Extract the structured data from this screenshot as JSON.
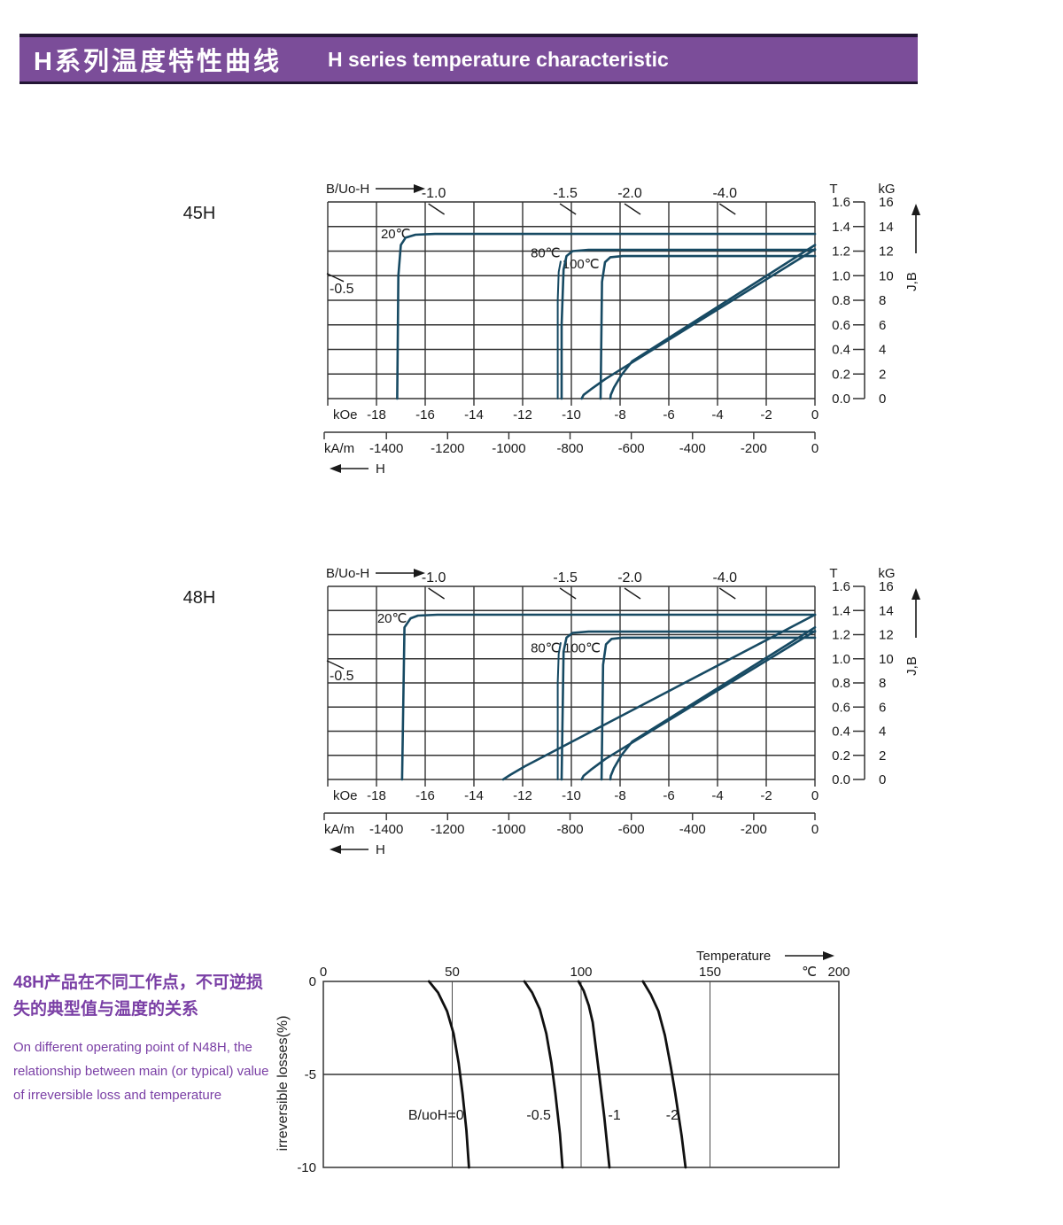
{
  "banner": {
    "title_zh": "H系列温度特性曲线",
    "title_en": "H  series temperature characteristic",
    "bg_color": "#7b4d99",
    "border_color": "#241735",
    "text_color": "#ffffff"
  },
  "note": {
    "zh": "48H产品在不同工作点，不可逆损失的典型值与温度的关系",
    "en": "On different operating point of N48H, the relationship between main (or typical) value of irreversible loss and temperature",
    "color": "#7a3fa5"
  },
  "colors": {
    "demag_curve": "#174a63",
    "loss_curve": "#101010",
    "grid": "#333333",
    "text": "#1a1a1a",
    "accent": "#7b4d99"
  },
  "chart_data": [
    {
      "id": "demag-45H",
      "type": "line",
      "grade": "45H",
      "title": "45H demagnetization curves",
      "axis_top_label": "B/Uo-H",
      "h_axis": {
        "unit_koe": "kOe",
        "ticks_koe": [
          -18,
          -16,
          -14,
          -12,
          -10,
          -8,
          -6,
          -4,
          -2,
          0
        ],
        "unit_kam": "kA/m",
        "ticks_kam": [
          -1400,
          -1200,
          -1000,
          -800,
          -600,
          -400,
          -200,
          0
        ],
        "arrow_label": "H",
        "range_koe": [
          -20,
          0
        ]
      },
      "b_axis": {
        "unit_t": "T",
        "ticks_t": [
          "1.6",
          "1.4",
          "1.2",
          "1.0",
          "0.8",
          "0.6",
          "0.4",
          "0.2",
          "0.0"
        ],
        "unit_kg": "kG",
        "ticks_kg": [
          16,
          14,
          12,
          10,
          8,
          6,
          4,
          2,
          0
        ],
        "arrow_label": "J,B",
        "range_kg": [
          0,
          16
        ]
      },
      "load_lines": {
        "top": [
          {
            "label": "-1.0",
            "h": -15.65
          },
          {
            "label": "-1.5",
            "h": -10.25
          },
          {
            "label": "-2.0",
            "h": -7.6
          },
          {
            "label": "-4.0",
            "h": -3.7
          }
        ],
        "left": {
          "label": "-0.5",
          "b_kg": 8.95
        }
      },
      "temp_labels": [
        {
          "label": "20℃",
          "h": -16.6,
          "b_kg": 13.05
        },
        {
          "label": "80℃",
          "h": -10.45,
          "b_kg": 11.5
        },
        {
          "label": "100℃",
          "h": -8.85,
          "b_kg": 10.6
        }
      ],
      "series": [
        {
          "name": "J 20℃",
          "points": [
            [
              0,
              13.4
            ],
            [
              -15.6,
              13.4
            ],
            [
              -16.4,
              13.33
            ],
            [
              -16.8,
              13.1
            ],
            [
              -17.0,
              12.5
            ],
            [
              -17.1,
              10
            ],
            [
              -17.15,
              0
            ]
          ]
        },
        {
          "name": "J 80℃",
          "points": [
            [
              0,
              12.1
            ],
            [
              -9.3,
              12.1
            ],
            [
              -9.95,
              12.0
            ],
            [
              -10.2,
              11.6
            ],
            [
              -10.32,
              10.5
            ],
            [
              -10.4,
              6
            ],
            [
              -10.4,
              0
            ]
          ]
        },
        {
          "name": "J 80℃ companion",
          "width": 2,
          "points": [
            [
              -10.56,
              0
            ],
            [
              -10.56,
              8
            ],
            [
              -10.52,
              10.3
            ],
            [
              -10.44,
              11.15
            ]
          ]
        },
        {
          "name": "J 100℃",
          "points": [
            [
              0,
              11.6
            ],
            [
              -7.9,
              11.6
            ],
            [
              -8.4,
              11.5
            ],
            [
              -8.62,
              11.1
            ],
            [
              -8.74,
              9.5
            ],
            [
              -8.8,
              0
            ]
          ]
        },
        {
          "name": "B 100℃",
          "points": [
            [
              0,
              12.5
            ],
            [
              -7.5,
              3.05
            ],
            [
              -7.95,
              1.9
            ],
            [
              -8.25,
              0.9
            ],
            [
              -8.38,
              0.3
            ],
            [
              -8.4,
              0
            ]
          ]
        },
        {
          "name": "B 80℃",
          "points": [
            [
              0,
              12.15
            ],
            [
              -8.6,
              1.6
            ],
            [
              -9.2,
              0.75
            ],
            [
              -9.5,
              0.3
            ],
            [
              -9.58,
              0
            ]
          ]
        }
      ]
    },
    {
      "id": "demag-48H",
      "type": "line",
      "grade": "48H",
      "title": "48H demagnetization curves",
      "axis_top_label": "B/Uo-H",
      "h_axis": {
        "unit_koe": "kOe",
        "ticks_koe": [
          -18,
          -16,
          -14,
          -12,
          -10,
          -8,
          -6,
          -4,
          -2,
          0
        ],
        "unit_kam": "kA/m",
        "ticks_kam": [
          -1400,
          -1200,
          -1000,
          -800,
          -600,
          -400,
          -200,
          0
        ],
        "arrow_label": "H",
        "range_koe": [
          -20,
          0
        ]
      },
      "b_axis": {
        "unit_t": "T",
        "ticks_t": [
          "1.6",
          "1.4",
          "1.2",
          "1.0",
          "0.8",
          "0.6",
          "0.4",
          "0.2",
          "0.0"
        ],
        "unit_kg": "kG",
        "ticks_kg": [
          16,
          14,
          12,
          10,
          8,
          6,
          4,
          2,
          0
        ],
        "arrow_label": "J,B",
        "range_kg": [
          0,
          16
        ]
      },
      "load_lines": {
        "top": [
          {
            "label": "-1.0",
            "h": -15.65
          },
          {
            "label": "-1.5",
            "h": -10.25
          },
          {
            "label": "-2.0",
            "h": -7.6
          },
          {
            "label": "-4.0",
            "h": -3.7
          }
        ],
        "left": {
          "label": "-0.5",
          "b_kg": 8.6
        }
      },
      "temp_labels": [
        {
          "label": "20℃",
          "h": -16.75,
          "b_kg": 13.0
        },
        {
          "label": "80℃",
          "h": -10.45,
          "b_kg": 10.55
        },
        {
          "label": "100℃",
          "h": -8.8,
          "b_kg": 10.55
        }
      ],
      "series": [
        {
          "name": "J 20℃",
          "points": [
            [
              0,
              13.65
            ],
            [
              -15.5,
              13.65
            ],
            [
              -16.3,
              13.58
            ],
            [
              -16.6,
              13.35
            ],
            [
              -16.85,
              12.6
            ],
            [
              -16.95,
              0
            ]
          ]
        },
        {
          "name": "B 20℃",
          "points": [
            [
              0,
              13.65
            ],
            [
              -11.9,
              1.1
            ],
            [
              -12.5,
              0.4
            ],
            [
              -12.8,
              0
            ]
          ]
        },
        {
          "name": "J 80℃",
          "points": [
            [
              0,
              12.25
            ],
            [
              -9.3,
              12.25
            ],
            [
              -9.95,
              12.15
            ],
            [
              -10.2,
              11.75
            ],
            [
              -10.32,
              10.6
            ],
            [
              -10.4,
              0
            ]
          ]
        },
        {
          "name": "J 80℃ companion",
          "width": 2,
          "points": [
            [
              -10.56,
              0
            ],
            [
              -10.56,
              8
            ],
            [
              -10.52,
              10.4
            ],
            [
              -10.44,
              11.3
            ]
          ]
        },
        {
          "name": "J 100℃",
          "points": [
            [
              0,
              11.75
            ],
            [
              -7.9,
              11.75
            ],
            [
              -8.35,
              11.65
            ],
            [
              -8.58,
              11.2
            ],
            [
              -8.7,
              9.5
            ],
            [
              -8.76,
              0
            ]
          ]
        },
        {
          "name": "B 100℃",
          "points": [
            [
              0,
              12.6
            ],
            [
              -7.5,
              3.15
            ],
            [
              -7.95,
              2.0
            ],
            [
              -8.25,
              0.95
            ],
            [
              -8.38,
              0.3
            ],
            [
              -8.4,
              0
            ]
          ]
        },
        {
          "name": "B 80℃",
          "points": [
            [
              0,
              12.3
            ],
            [
              -8.6,
              1.7
            ],
            [
              -9.2,
              0.8
            ],
            [
              -9.5,
              0.3
            ],
            [
              -9.58,
              0
            ]
          ]
        }
      ]
    },
    {
      "id": "loss",
      "type": "line",
      "title": "Irreversible loss vs temperature (N48H)",
      "x_axis": {
        "label": "Temperature",
        "unit": "℃",
        "ticks": [
          0,
          50,
          100,
          150,
          200
        ],
        "range": [
          0,
          200
        ]
      },
      "y_axis": {
        "label": "irreversible  losses(%)",
        "ticks": [
          0,
          -5,
          -10
        ],
        "range": [
          -10,
          0
        ]
      },
      "series": [
        {
          "name": "B/uoH=0",
          "label_t": 54.5,
          "label_anchor": "end",
          "points": [
            [
              41,
              0
            ],
            [
              44.5,
              -0.6
            ],
            [
              48,
              -1.6
            ],
            [
              50.5,
              -2.8
            ],
            [
              52.5,
              -4.4
            ],
            [
              54,
              -6
            ],
            [
              55.5,
              -8
            ],
            [
              56.5,
              -10
            ]
          ]
        },
        {
          "name": "-0.5",
          "label_t": 88.3,
          "label_anchor": "end",
          "points": [
            [
              78,
              0
            ],
            [
              81,
              -0.6
            ],
            [
              84,
              -1.5
            ],
            [
              86.5,
              -2.8
            ],
            [
              88.5,
              -4.4
            ],
            [
              90,
              -6
            ],
            [
              91.8,
              -8.2
            ],
            [
              92.8,
              -10
            ]
          ]
        },
        {
          "name": "-1",
          "label_t": 110.5,
          "label_anchor": "start",
          "points": [
            [
              99,
              0
            ],
            [
              101,
              -0.5
            ],
            [
              103,
              -1.3
            ],
            [
              104.5,
              -2.2
            ],
            [
              107,
              -5
            ],
            [
              109,
              -7.3
            ],
            [
              111,
              -10
            ]
          ]
        },
        {
          "name": "-2",
          "label_t": 137.8,
          "label_anchor": "end",
          "points": [
            [
              124,
              0
            ],
            [
              127,
              -0.7
            ],
            [
              130,
              -1.6
            ],
            [
              132.5,
              -2.9
            ],
            [
              134.8,
              -4.6
            ],
            [
              136.5,
              -6
            ],
            [
              139,
              -8.3
            ],
            [
              140.5,
              -10
            ]
          ]
        }
      ]
    }
  ]
}
